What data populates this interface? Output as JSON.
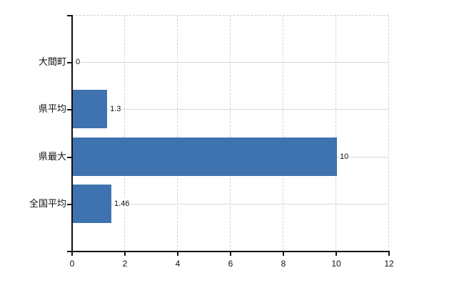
{
  "chart_data": {
    "type": "bar",
    "orientation": "horizontal",
    "title": "",
    "xlabel": "",
    "ylabel": "",
    "categories": [
      "大間町",
      "県平均",
      "県最大",
      "全国平均"
    ],
    "values": [
      0,
      1.3,
      10,
      1.46
    ],
    "value_labels": [
      "0",
      "1.3",
      "10",
      "1.46"
    ],
    "x_ticks": [
      0,
      2,
      4,
      6,
      8,
      10,
      12
    ],
    "x_tick_labels": [
      "0",
      "2",
      "4",
      "6",
      "8",
      "10",
      "12"
    ],
    "xlim": [
      0,
      12
    ],
    "grid": true,
    "legend": false,
    "colors": {
      "bar": "#3e73af",
      "axis": "#111111",
      "h_gridline": "#d8dad6",
      "v_gridline": "#d4d2d6",
      "top_border": "#cfcfcf",
      "text": "#111111",
      "background": "#ffffff"
    }
  }
}
